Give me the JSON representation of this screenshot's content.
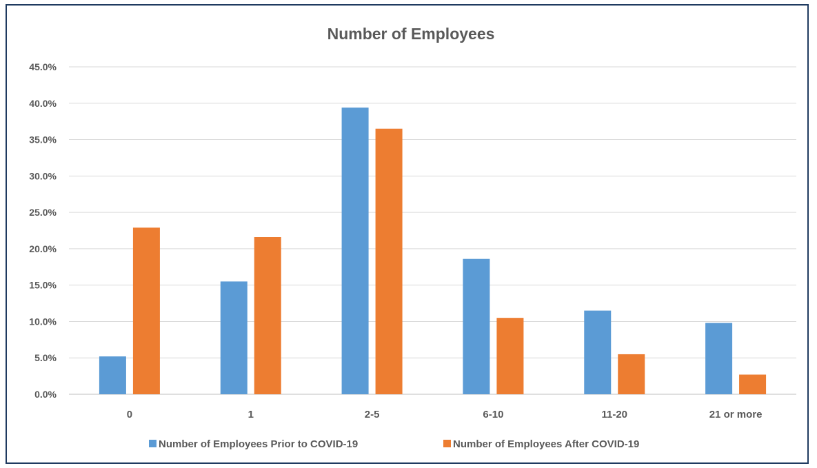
{
  "chart_data": {
    "type": "bar",
    "title": "Number of Employees",
    "xlabel": "",
    "ylabel": "",
    "categories": [
      "0",
      "1",
      "2-5",
      "6-10",
      "11-20",
      "21 or more"
    ],
    "ylim": [
      0,
      45
    ],
    "yticks": [
      "0.0%",
      "5.0%",
      "10.0%",
      "15.0%",
      "20.0%",
      "25.0%",
      "30.0%",
      "35.0%",
      "40.0%",
      "45.0%"
    ],
    "grid": true,
    "legend_position": "bottom",
    "series": [
      {
        "name": "Number of Employees Prior to COVID-19",
        "color": "#5b9bd5",
        "values": [
          5.2,
          15.5,
          39.4,
          18.6,
          11.5,
          9.8
        ]
      },
      {
        "name": "Number of Employees After COVID-19",
        "color": "#ed7d31",
        "values": [
          22.9,
          21.6,
          36.5,
          10.5,
          5.5,
          2.7
        ]
      }
    ]
  }
}
